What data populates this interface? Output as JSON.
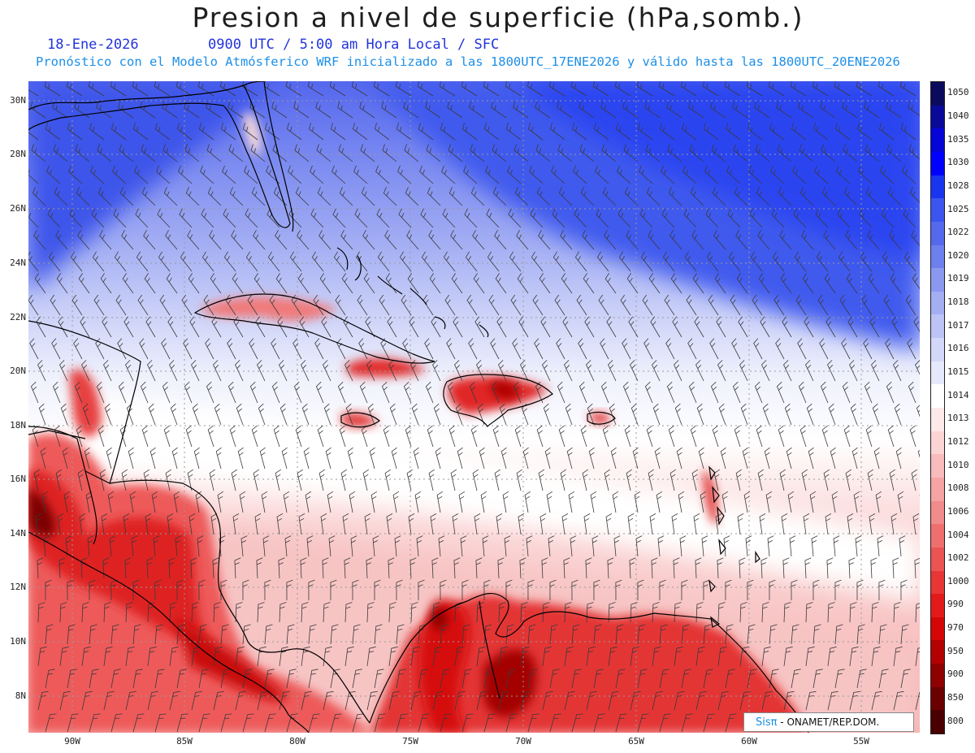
{
  "header": {
    "title": "Presion a nivel de superficie (hPa,somb.)",
    "date": "18-Ene-2026",
    "time": "0900 UTC / 5:00 am Hora Local / SFC",
    "subtitle": "Pronóstico con el Modelo Atmósferico WRF inicializado a las 1800UTC_17ENE2026 y válido hasta las  1800UTC_20ENE2026"
  },
  "map": {
    "lat_labels": [
      "30N",
      "28N",
      "26N",
      "24N",
      "22N",
      "20N",
      "18N",
      "16N",
      "14N",
      "12N",
      "10N",
      "8N"
    ],
    "lon_labels": [
      "90W",
      "85W",
      "80W",
      "75W",
      "70W",
      "65W",
      "60W",
      "55W"
    ],
    "extent": {
      "west": -92,
      "east": -52.5,
      "south": 6.8,
      "north": 30.7
    },
    "features": [
      "shaded-pressure",
      "wind-barbs",
      "coastlines",
      "gridlines"
    ]
  },
  "colorbar": {
    "labels": [
      "1050",
      "1040",
      "1035",
      "1030",
      "1028",
      "1025",
      "1022",
      "1020",
      "1019",
      "1018",
      "1017",
      "1016",
      "1015",
      "1014",
      "1013",
      "1012",
      "1010",
      "1008",
      "1006",
      "1004",
      "1002",
      "1000",
      "990",
      "970",
      "950",
      "900",
      "850",
      "800"
    ],
    "colors": [
      "#0b0b5e",
      "#0a0a9a",
      "#0505d8",
      "#0000ff",
      "#1a35f0",
      "#3b55ee",
      "#5569ec",
      "#6e80ee",
      "#8a98f0",
      "#a3aef3",
      "#bcc4f6",
      "#d3d8f9",
      "#e6e9fb",
      "#ffffff",
      "#fde9e9",
      "#fbd4d4",
      "#f8bcbc",
      "#f5a3a3",
      "#f28b8b",
      "#ef6f6f",
      "#ec5353",
      "#e83636",
      "#e21a1a",
      "#d40606",
      "#b30000",
      "#8f0000",
      "#6b0000",
      "#4a0000"
    ]
  },
  "credit": {
    "logo": "Sisπ",
    "text": "- ONAMET/REP.DOM."
  }
}
